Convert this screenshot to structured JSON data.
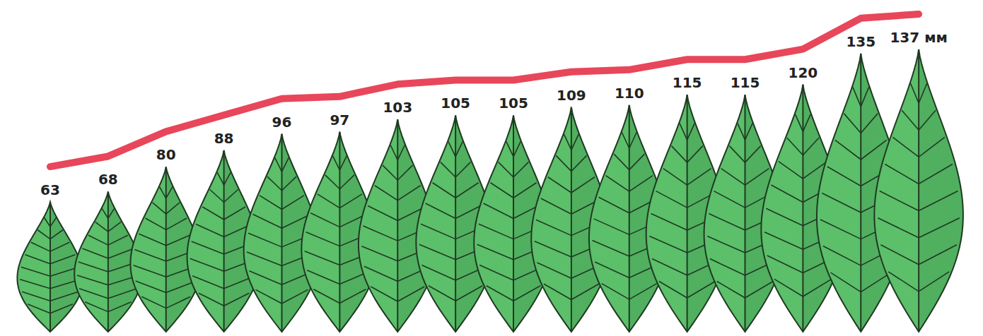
{
  "chart_data": {
    "type": "bar",
    "categories": [
      null,
      null,
      null,
      null,
      null,
      null,
      null,
      null,
      null,
      null,
      null,
      null,
      null,
      null,
      null,
      null
    ],
    "tick_labels": false,
    "data_labels": true,
    "series": [
      {
        "type": "bar",
        "color": "#5cbf6a",
        "values": [
          63,
          68,
          80,
          88,
          96,
          97,
          103,
          105,
          105,
          109,
          110,
          115,
          115,
          120,
          135,
          137
        ],
        "value_labels": [
          "63",
          "68",
          "80",
          "88",
          "96",
          "97",
          "103",
          "105",
          "105",
          "109",
          "110",
          "115",
          "115",
          "120",
          "135",
          "137 мм"
        ]
      },
      {
        "type": "line",
        "color": "#e8465a",
        "values": [
          63,
          68,
          80,
          88,
          96,
          97,
          103,
          105,
          105,
          109,
          110,
          115,
          115,
          120,
          135,
          137
        ]
      }
    ]
  }
}
